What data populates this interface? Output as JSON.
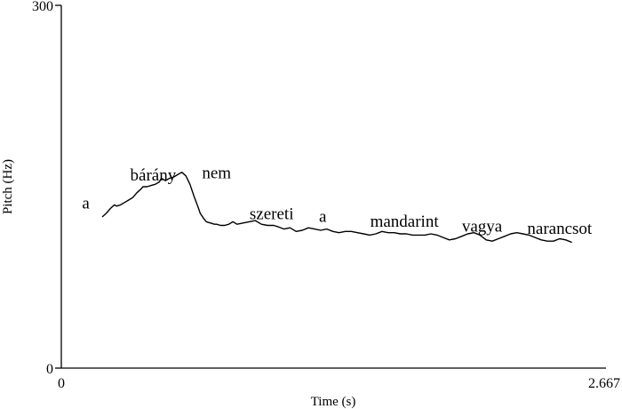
{
  "chart_data": {
    "type": "line",
    "xlabel": "Time (s)",
    "ylabel": "Pitch (Hz)",
    "xlim": [
      0,
      2.667
    ],
    "ylim": [
      0,
      300
    ],
    "x_tick_labels": [
      "0",
      "2.667"
    ],
    "y_tick_labels": [
      "0",
      "300"
    ],
    "grid": false,
    "series": [
      {
        "x": [
          0.2,
          0.22,
          0.24,
          0.26,
          0.27,
          0.29,
          0.31,
          0.33,
          0.35,
          0.37,
          0.39,
          0.4,
          0.42,
          0.44,
          0.46,
          0.48,
          0.49,
          0.51,
          0.53,
          0.55,
          0.57,
          0.59,
          0.61,
          0.63,
          0.65,
          0.67,
          0.68,
          0.7,
          0.71,
          0.73,
          0.75,
          0.76,
          0.78,
          0.8,
          0.82,
          0.84,
          0.86,
          0.89,
          0.92,
          0.95,
          0.98,
          1.01,
          1.04,
          1.06,
          1.09,
          1.12,
          1.15,
          1.18,
          1.21,
          1.24,
          1.27,
          1.3,
          1.33,
          1.36,
          1.39,
          1.42,
          1.45,
          1.48,
          1.51,
          1.54,
          1.57,
          1.6,
          1.63,
          1.66,
          1.69,
          1.72,
          1.75,
          1.78,
          1.81,
          1.84,
          1.87,
          1.9,
          1.93,
          1.96,
          1.99,
          2.02,
          2.05,
          2.08,
          2.11,
          2.14,
          2.17,
          2.2,
          2.23,
          2.26,
          2.29,
          2.32,
          2.35,
          2.38,
          2.41,
          2.44,
          2.47,
          2.5
        ],
        "y": [
          125,
          128,
          132,
          135,
          134,
          135,
          137,
          139,
          141,
          145,
          148,
          150,
          150,
          151,
          152,
          154,
          157,
          155,
          157,
          158,
          160,
          162,
          159,
          152,
          142,
          133,
          128,
          123,
          121,
          120,
          119,
          119,
          118,
          118,
          119,
          121,
          119,
          120,
          121,
          122,
          119,
          118,
          118,
          117,
          115,
          116,
          113,
          114,
          116,
          115,
          114,
          115,
          113,
          112,
          113,
          113,
          112,
          111,
          110,
          111,
          113,
          112,
          112,
          111,
          111,
          110,
          110,
          110,
          111,
          110,
          108,
          106,
          107,
          109,
          111,
          112,
          110,
          106,
          105,
          107,
          109,
          111,
          112,
          111,
          110,
          108,
          106,
          105,
          105,
          107,
          106,
          104
        ]
      }
    ],
    "annotations": [
      {
        "text": "a",
        "x": 0.12,
        "y": 132
      },
      {
        "text": "bárány",
        "x": 0.45,
        "y": 155
      },
      {
        "text": "nem",
        "x": 0.76,
        "y": 157
      },
      {
        "text": "szereti",
        "x": 1.03,
        "y": 123
      },
      {
        "text": "a",
        "x": 1.28,
        "y": 121
      },
      {
        "text": "mandarint",
        "x": 1.68,
        "y": 117
      },
      {
        "text": "vagya",
        "x": 2.06,
        "y": 113
      },
      {
        "text": "narancsot",
        "x": 2.44,
        "y": 111
      }
    ]
  }
}
